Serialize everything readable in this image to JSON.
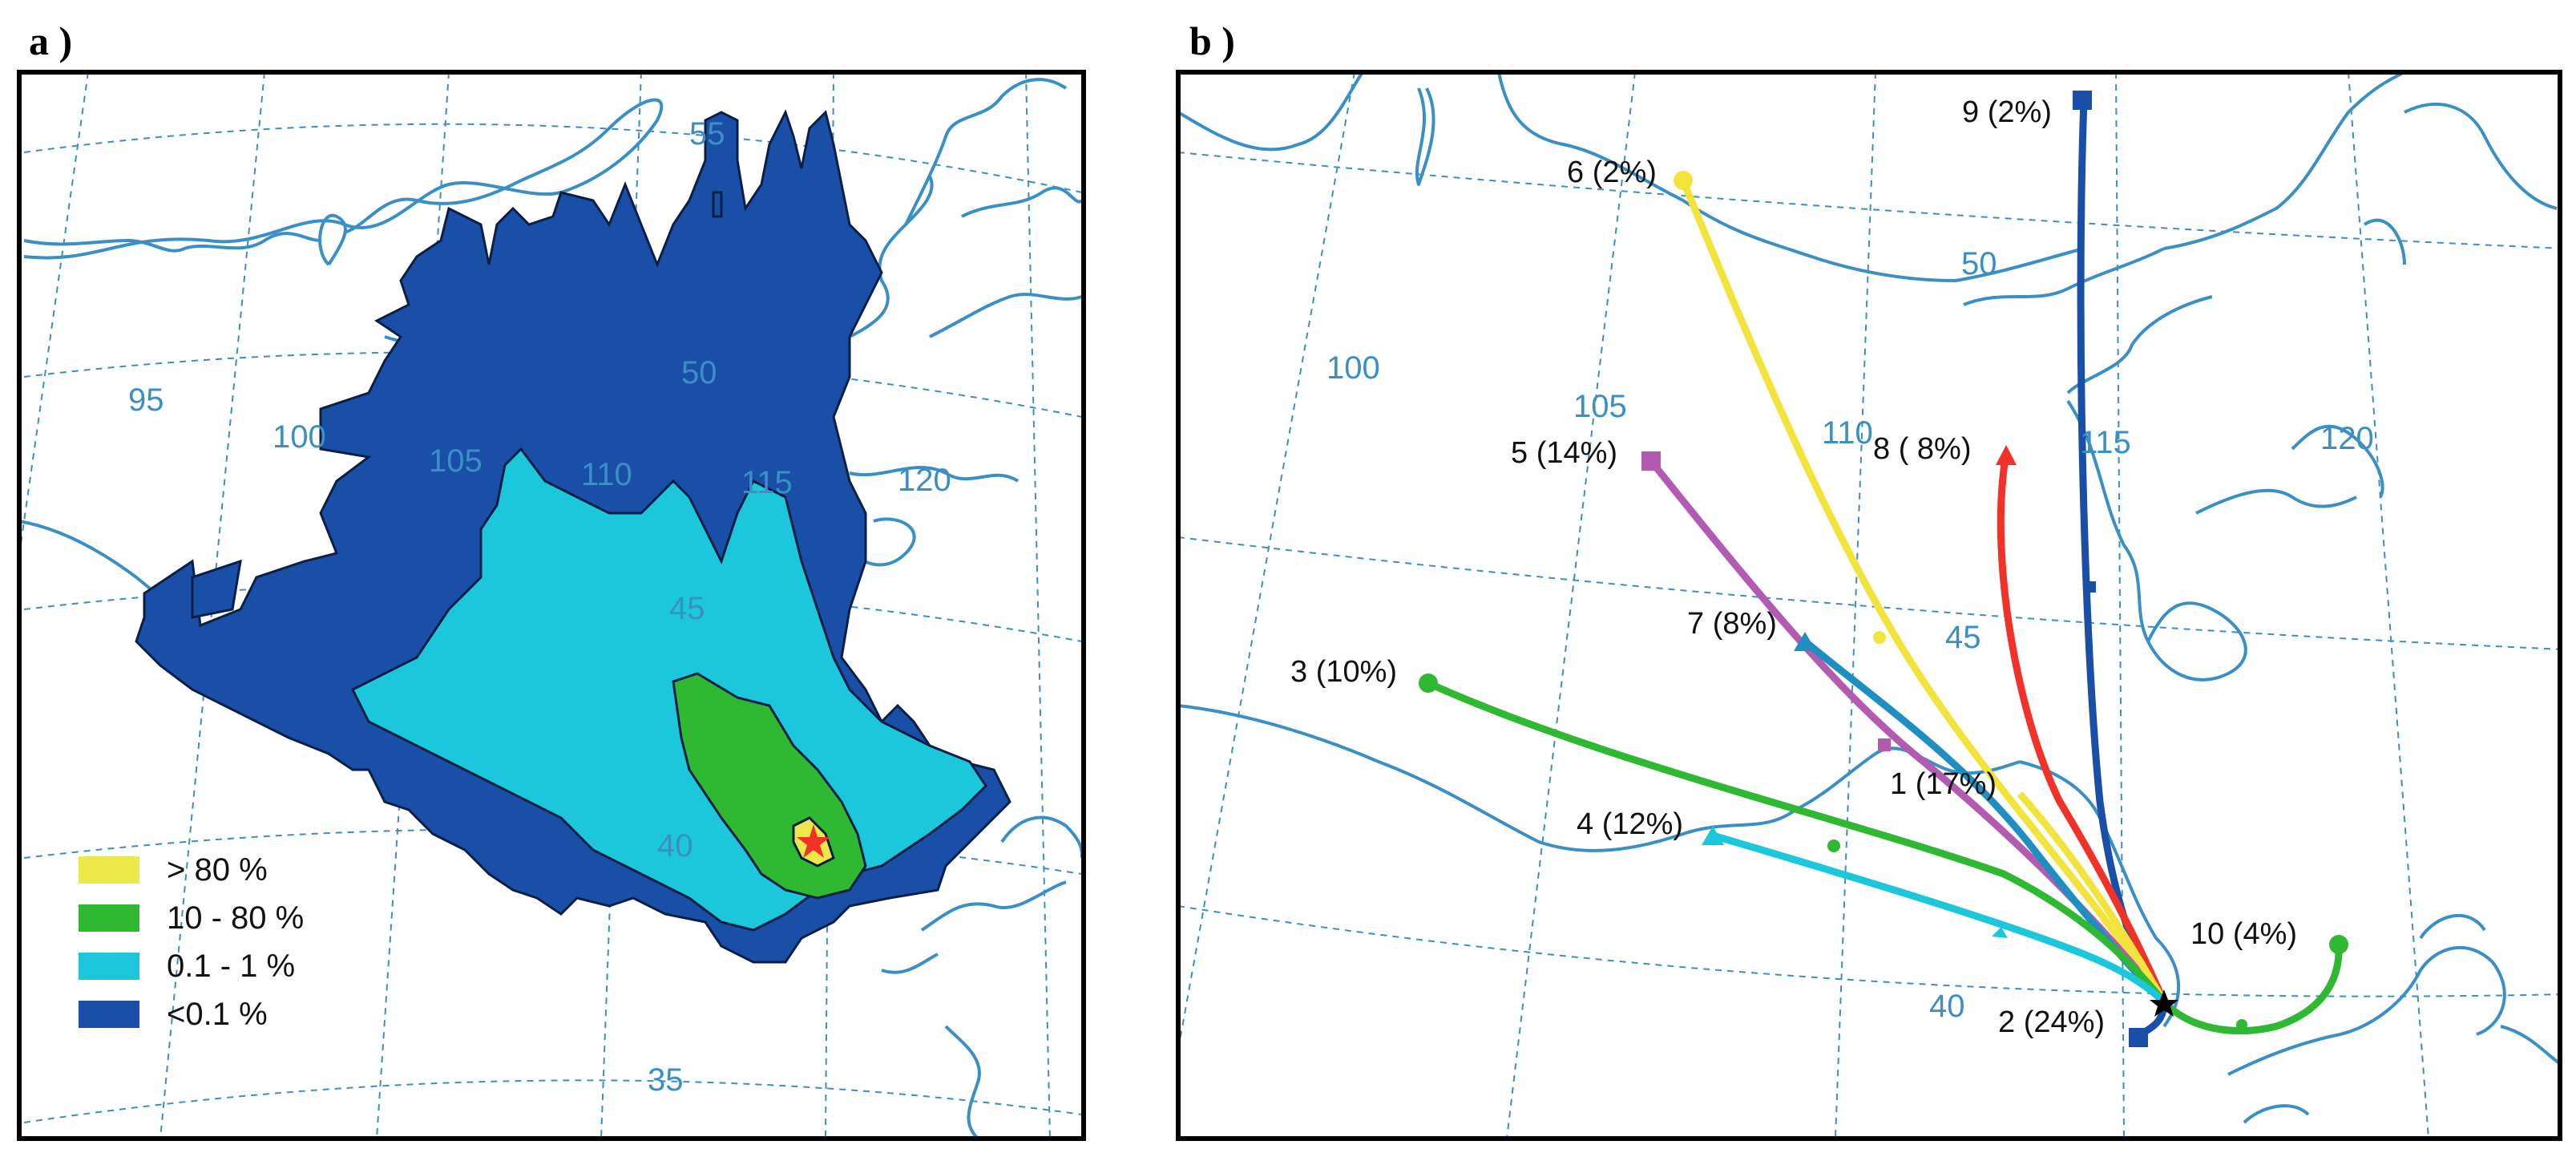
{
  "panels": {
    "a": {
      "label": "a )",
      "legend": [
        {
          "label": "> 80 %",
          "color": "#ede84a"
        },
        {
          "label": "10 - 80 %",
          "color": "#2fb832"
        },
        {
          "label": "0.1 - 1 %",
          "color": "#1cc7dc"
        },
        {
          "label": "<0.1 %",
          "color": "#1a4fa8"
        }
      ],
      "lon_labels": [
        "95",
        "100",
        "105",
        "110",
        "115",
        "120"
      ],
      "lat_labels": [
        "55",
        "50",
        "45",
        "40",
        "35"
      ]
    },
    "b": {
      "label": "b )",
      "lon_labels": [
        "100",
        "105",
        "110",
        "115",
        "120"
      ],
      "lat_labels": [
        "50",
        "45",
        "40"
      ],
      "trajectories": [
        {
          "label": "1 (17%)",
          "color": "#f2e43c"
        },
        {
          "label": "2 (24%)",
          "color": "#1a4fa8"
        },
        {
          "label": "3 (10%)",
          "color": "#2fb832"
        },
        {
          "label": "4 (12%)",
          "color": "#1cc7dc"
        },
        {
          "label": "5 (14%)",
          "color": "#b35bb0"
        },
        {
          "label": "6 (2%)",
          "color": "#f2e43c"
        },
        {
          "label": "7 (8%)",
          "color": "#1f8ec0"
        },
        {
          "label": "8 ( 8%)",
          "color": "#f03228"
        },
        {
          "label": "9 (2%)",
          "color": "#1a4fa8"
        },
        {
          "label": "10 (4%)",
          "color": "#2fb832"
        }
      ]
    }
  }
}
